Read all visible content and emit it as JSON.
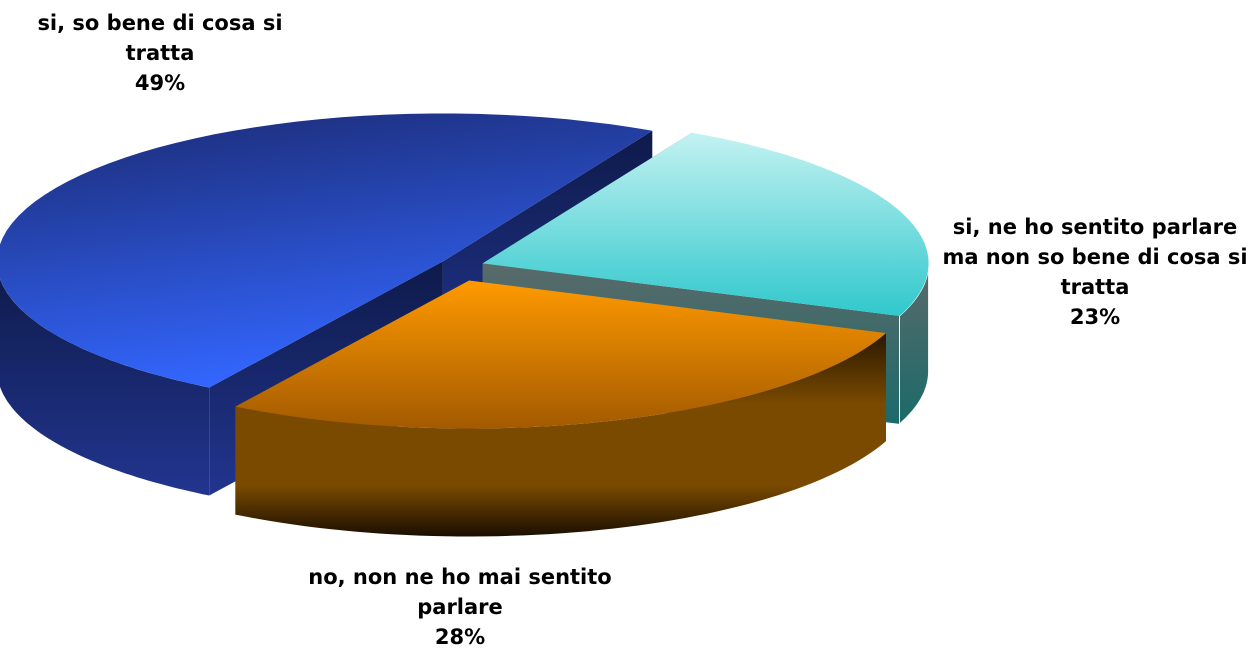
{
  "chart_data": {
    "type": "pie",
    "categories": [
      "si, so bene di cosa si tratta",
      "si, ne ho sentito parlare ma non so bene di cosa si tratta",
      "no, non ne ho mai sentito parlare"
    ],
    "values": [
      49,
      23,
      28
    ],
    "value_labels": [
      "49%",
      "23%",
      "28%"
    ],
    "colors": [
      "#2f5ef0",
      "#5fd6d6",
      "#ff9a00"
    ]
  }
}
